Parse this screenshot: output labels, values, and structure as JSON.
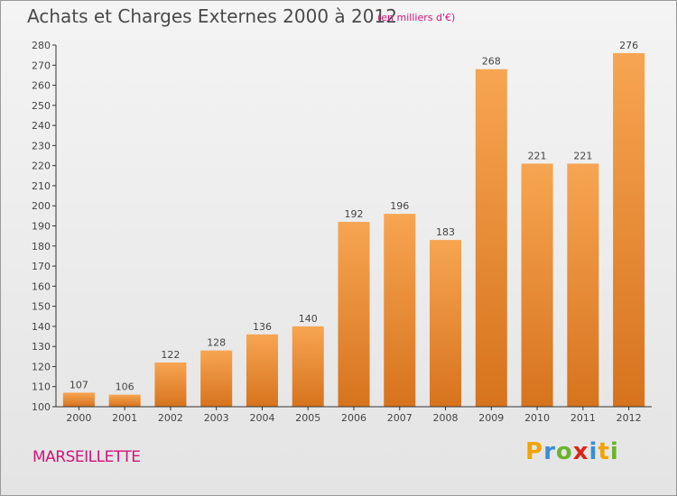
{
  "title": "Achats et Charges Externes 2000 à 2012",
  "subtitle": "(en milliers d'€)",
  "commune": "MARSEILLETTE",
  "logo": {
    "letters": [
      "P",
      "r",
      "o",
      "x",
      "i",
      "t",
      "i"
    ],
    "colors": [
      "#f2a300",
      "#3a8fd6",
      "#6ab42d",
      "#d6261c",
      "#3a8fd6",
      "#f2a300",
      "#6ab42d"
    ]
  },
  "colors": {
    "bar_light": "#f7a552",
    "bar_dark": "#d7731d",
    "label": "#444444",
    "axis": "#333333",
    "accent": "#d0157a"
  },
  "chart_data": {
    "type": "bar",
    "categories": [
      "2000",
      "2001",
      "2002",
      "2003",
      "2004",
      "2005",
      "2006",
      "2007",
      "2008",
      "2009",
      "2010",
      "2011",
      "2012"
    ],
    "values": [
      107,
      106,
      122,
      128,
      136,
      140,
      192,
      196,
      183,
      268,
      221,
      221,
      276
    ],
    "ylim": [
      100,
      280
    ],
    "ytick_step": 10,
    "grid": false,
    "data_labels": true
  }
}
